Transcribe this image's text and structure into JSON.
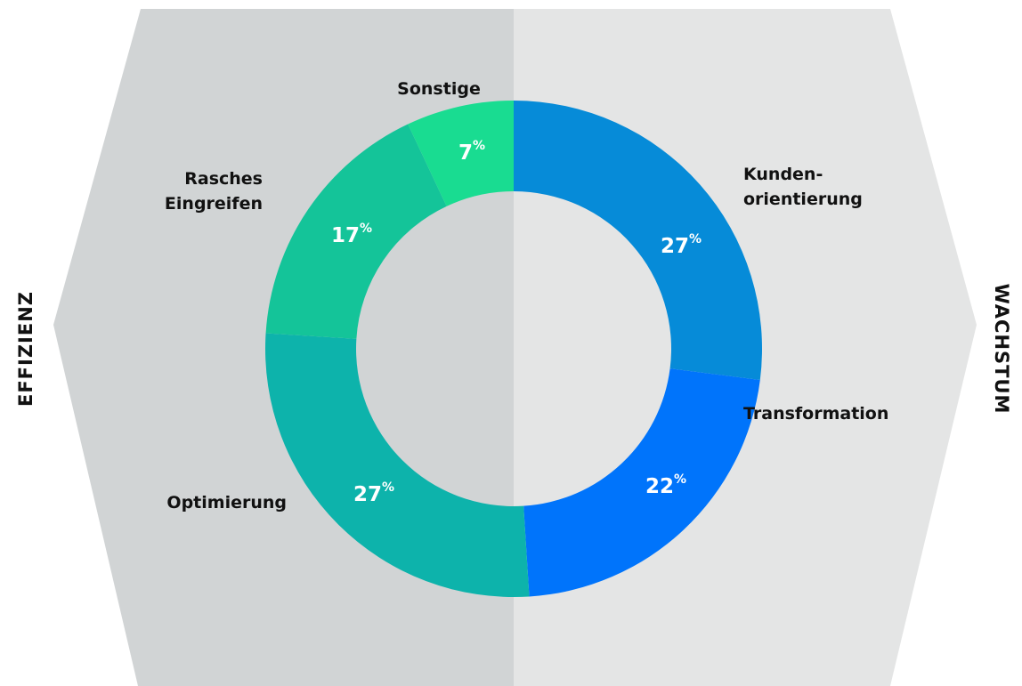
{
  "chart_data": {
    "type": "donut",
    "categories": [
      "Kunden-\norientierung",
      "Transformation",
      "Optimierung",
      "Rasches\nEingreifen",
      "Sonstige"
    ],
    "values": [
      27,
      22,
      27,
      17,
      7
    ],
    "value_labels": [
      "27%",
      "22%",
      "27%",
      "17%",
      "7%"
    ],
    "colors": [
      "#068bd8",
      "#0074fb",
      "#0db3ab",
      "#14c499",
      "#19dc91"
    ],
    "side_labels": {
      "left": "EFFIZIENZ",
      "right": "WACHSTUM"
    }
  }
}
